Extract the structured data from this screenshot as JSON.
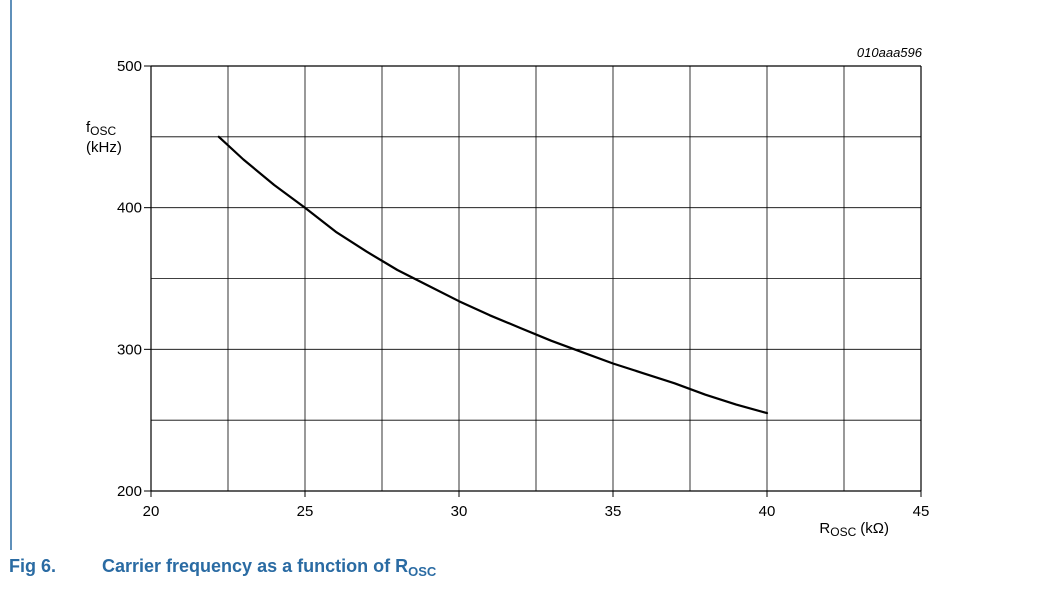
{
  "figure": {
    "number": "Fig 6.",
    "caption_main": "Carrier frequency as a function of R",
    "caption_sub": "OSC",
    "accent_color": "#2a6ba3"
  },
  "chart_data": {
    "type": "line",
    "code": "010aaa596",
    "ylabel": {
      "main": "f",
      "sub": "OSC",
      "unit": "(kHz)"
    },
    "xlabel": {
      "main": "R",
      "sub": "OSC",
      "unit": "(kΩ)"
    },
    "xlim": [
      20,
      45
    ],
    "ylim": [
      200,
      500
    ],
    "x_ticks": [
      20,
      25,
      30,
      35,
      40,
      45
    ],
    "x_tick_labels": [
      "20",
      "25",
      "30",
      "35",
      "40",
      "45"
    ],
    "y_ticks": [
      200,
      300,
      400,
      500
    ],
    "y_tick_labels": [
      "200",
      "300",
      "400",
      "500"
    ],
    "x_grid": [
      20,
      22.5,
      25,
      27.5,
      30,
      32.5,
      35,
      37.5,
      40,
      42.5,
      45
    ],
    "y_grid": [
      200,
      250,
      300,
      350,
      400,
      450,
      500
    ],
    "grid": true,
    "line_color": "#000000",
    "series": [
      {
        "x": [
          22.2,
          23,
          24,
          25,
          26,
          27,
          28,
          29,
          30,
          31,
          32,
          33,
          34,
          35,
          36,
          37,
          38,
          39,
          40
        ],
        "y": [
          450,
          434,
          416,
          400,
          383,
          369,
          356,
          345,
          334,
          324,
          315,
          306,
          298,
          290,
          283,
          276,
          268,
          261,
          255
        ]
      }
    ]
  }
}
